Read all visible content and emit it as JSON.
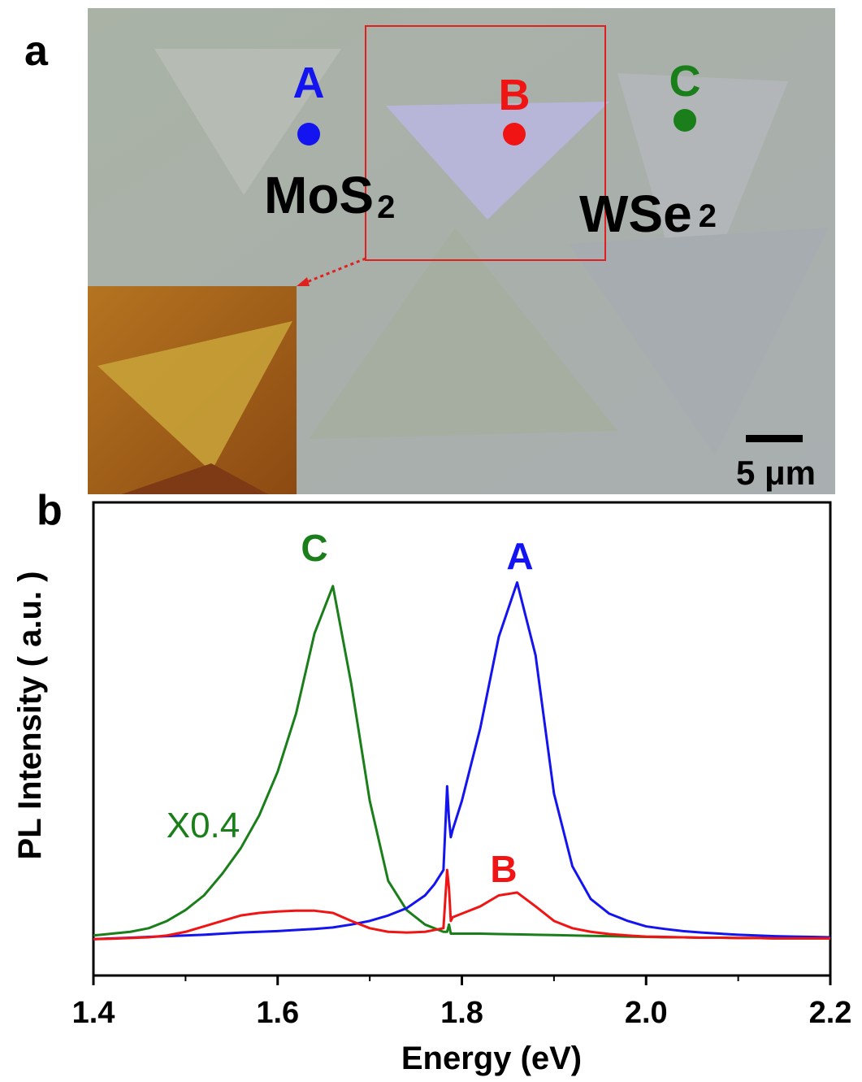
{
  "image": {
    "panel_label": "a",
    "points": [
      {
        "label": "A",
        "color": "#1414f0"
      },
      {
        "label": "B",
        "color": "#f01414"
      },
      {
        "label": "C",
        "color": "#1a7f1a"
      }
    ],
    "materials": [
      {
        "text": "MoS",
        "sub": "2"
      },
      {
        "text": "WSe",
        "sub": "2"
      }
    ],
    "scale_bar": "5 μm"
  },
  "chart_data": {
    "type": "line",
    "panel_label": "b",
    "x_label": "Energy  (eV)",
    "y_label": "PL  Intensity  ( a.u. )",
    "annotations": [
      "X0.4"
    ],
    "xlim": [
      1.4,
      2.2
    ],
    "xticks": [
      1.4,
      1.6,
      1.8,
      {
        "value": 2,
        "label": "2.0"
      },
      2.2
    ],
    "xminorticks": [
      1.5,
      1.7,
      1.9,
      2.1
    ],
    "ylim": [
      -0.1,
      1.2
    ],
    "x": [
      1.4,
      1.42,
      1.44,
      1.46,
      1.48,
      1.5,
      1.52,
      1.54,
      1.56,
      1.58,
      1.6,
      1.62,
      1.64,
      1.66,
      1.68,
      1.7,
      1.72,
      1.74,
      1.76,
      1.77,
      1.78,
      1.784,
      1.786,
      1.788,
      1.79,
      1.8,
      1.82,
      1.84,
      1.86,
      1.88,
      1.9,
      1.92,
      1.94,
      1.96,
      1.98,
      2.0,
      2.02,
      2.04,
      2.06,
      2.08,
      2.1,
      2.12,
      2.14,
      2.16,
      2.18,
      2.2
    ],
    "series": [
      {
        "name": "C",
        "color": "#1a7f1a",
        "values": [
          0.01,
          0.015,
          0.02,
          0.03,
          0.05,
          0.08,
          0.12,
          0.18,
          0.25,
          0.34,
          0.46,
          0.62,
          0.84,
          0.97,
          0.7,
          0.38,
          0.16,
          0.08,
          0.04,
          0.03,
          0.02,
          0.02,
          0.04,
          0.015,
          0.015,
          0.015,
          0.015,
          0.014,
          0.013,
          0.012,
          0.011,
          0.01,
          0.009,
          0.008,
          0.007,
          0.006,
          0.005,
          0.005,
          0.004,
          0.004,
          0.003,
          0.003,
          0.002,
          0.002,
          0.002,
          0.002
        ]
      },
      {
        "name": "A",
        "color": "#1414f0",
        "values": [
          0.0,
          0.002,
          0.004,
          0.006,
          0.008,
          0.01,
          0.012,
          0.015,
          0.018,
          0.02,
          0.022,
          0.025,
          0.028,
          0.032,
          0.04,
          0.05,
          0.065,
          0.085,
          0.12,
          0.15,
          0.19,
          0.42,
          0.33,
          0.28,
          0.3,
          0.38,
          0.58,
          0.83,
          0.98,
          0.78,
          0.4,
          0.2,
          0.11,
          0.07,
          0.05,
          0.035,
          0.028,
          0.022,
          0.018,
          0.015,
          0.012,
          0.01,
          0.008,
          0.007,
          0.006,
          0.005
        ]
      },
      {
        "name": "B",
        "color": "#f01414",
        "values": [
          0.0,
          0.001,
          0.003,
          0.005,
          0.01,
          0.02,
          0.035,
          0.05,
          0.065,
          0.072,
          0.076,
          0.078,
          0.078,
          0.072,
          0.05,
          0.03,
          0.02,
          0.018,
          0.02,
          0.025,
          0.03,
          0.19,
          0.14,
          0.05,
          0.06,
          0.07,
          0.09,
          0.12,
          0.128,
          0.09,
          0.05,
          0.03,
          0.02,
          0.014,
          0.01,
          0.007,
          0.006,
          0.005,
          0.004,
          0.004,
          0.003,
          0.003,
          0.002,
          0.002,
          0.002,
          0.002
        ]
      }
    ]
  }
}
